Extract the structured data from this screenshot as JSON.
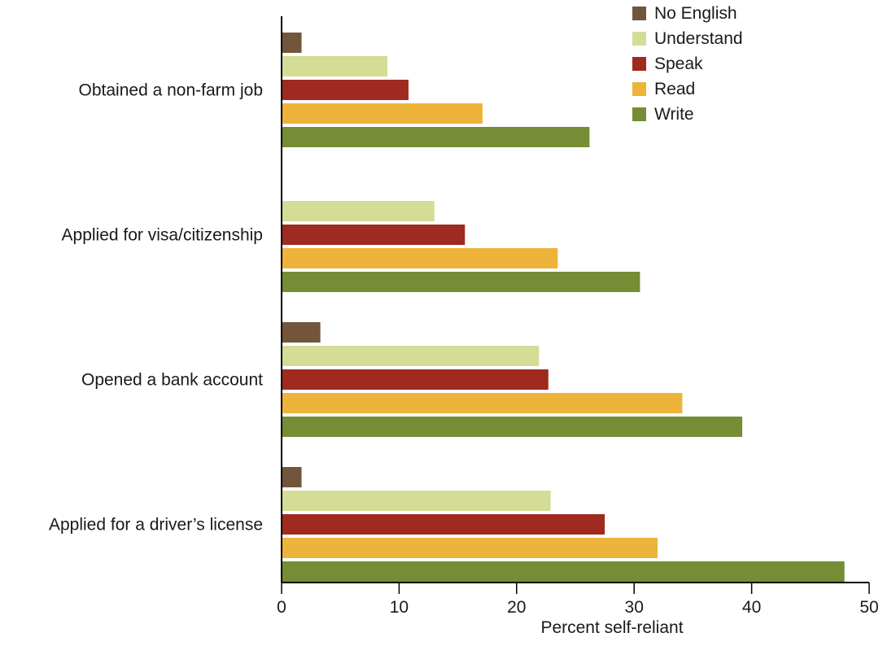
{
  "chart_data": {
    "type": "bar",
    "orientation": "horizontal",
    "categories": [
      "Obtained a non-farm job",
      "Applied for visa/citizenship",
      "Opened a bank account",
      "Applied for a driver’s license"
    ],
    "series": [
      {
        "name": "No English",
        "color": "#73553b",
        "values": [
          1.7,
          null,
          3.3,
          1.7
        ]
      },
      {
        "name": "Understand",
        "color": "#d4dc95",
        "values": [
          9.0,
          13.0,
          21.9,
          22.9
        ]
      },
      {
        "name": "Speak",
        "color": "#9e2a20",
        "values": [
          10.8,
          15.6,
          22.7,
          27.5
        ]
      },
      {
        "name": "Read",
        "color": "#eeb33b",
        "values": [
          17.1,
          23.5,
          34.1,
          32.0
        ]
      },
      {
        "name": "Write",
        "color": "#768c35",
        "values": [
          26.2,
          30.5,
          39.2,
          47.9
        ]
      }
    ],
    "xlabel": "Percent self-reliant",
    "ylabel": "",
    "xlim": [
      0,
      50
    ],
    "xticks": [
      0,
      10,
      20,
      30,
      40,
      50
    ],
    "grid": false,
    "legend_position": "top-right"
  }
}
